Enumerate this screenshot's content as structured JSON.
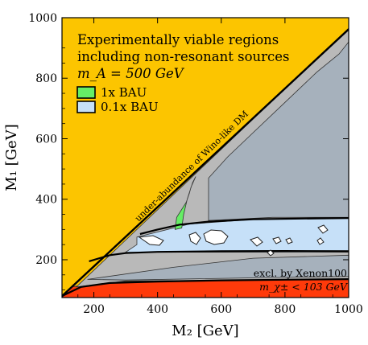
{
  "chart_data": {
    "type": "area",
    "xlabel": "M₂ [GeV]",
    "ylabel": "M₁ [GeV]",
    "xlim": [
      100,
      1000
    ],
    "ylim": [
      75,
      1000
    ],
    "xticks": [
      200,
      400,
      600,
      800,
      1000
    ],
    "yticks": [
      200,
      400,
      600,
      800,
      1000
    ],
    "title_lines": [
      "Experimentally viable regions",
      "including non-resonant sources",
      "m_A = 500 GeV"
    ],
    "legend": {
      "placement": "top-left",
      "entries": [
        {
          "label": "1x BAU",
          "color": "#66ee66"
        },
        {
          "label": "0.1x BAU",
          "color": "#c6e0f8"
        }
      ]
    },
    "annotations": {
      "diagonal": "under-abundance of Wino-like DM",
      "xenon": "excl. by Xenon100",
      "chargino": "m_χ± < 103 GeV"
    },
    "colors": {
      "under_abundance": "#fcc500",
      "excluded_chargino": "#ff3a0a",
      "gray_light": "#b9b9b9",
      "gray_dark": "#a6b1bc",
      "bau_1x": "#66ee66",
      "bau_01x": "#c6e0f8"
    },
    "regions": [
      {
        "name": "under-abundance of Wino-like DM",
        "color": "#fcc500",
        "points": [
          [
            100,
            75
          ],
          [
            100,
            1000
          ],
          [
            1000,
            1000
          ],
          [
            1000,
            965
          ],
          [
            145,
            110
          ]
        ]
      },
      {
        "name": "m_χ± < 103 GeV",
        "color": "#ff3a0a",
        "points": [
          [
            100,
            75
          ],
          [
            1000,
            75
          ],
          [
            1000,
            135
          ],
          [
            600,
            133
          ],
          [
            300,
            128
          ],
          [
            180,
            118
          ],
          [
            130,
            110
          ]
        ]
      },
      {
        "name": "gray-light",
        "color": "#b9b9b9",
        "points": [
          [
            145,
            110
          ],
          [
            1000,
            965
          ],
          [
            1000,
            135
          ],
          [
            300,
            130
          ]
        ]
      },
      {
        "name": "gray-dark",
        "color": "#a6b1bc",
        "points": [
          [
            560,
            470
          ],
          [
            620,
            540
          ],
          [
            700,
            620
          ],
          [
            800,
            720
          ],
          [
            900,
            820
          ],
          [
            970,
            880
          ],
          [
            1000,
            920
          ],
          [
            1000,
            340
          ],
          [
            760,
            340
          ],
          [
            640,
            334
          ],
          [
            560,
            330
          ]
        ]
      },
      {
        "name": "gray-dark",
        "color": "#a6b1bc",
        "points": [
          [
            180,
            135
          ],
          [
            450,
            175
          ],
          [
            700,
            205
          ],
          [
            1000,
            215
          ],
          [
            1000,
            145
          ],
          [
            700,
            140
          ],
          [
            300,
            133
          ]
        ]
      },
      {
        "name": "0.1x BAU",
        "color": "#c6e0f8",
        "points": [
          [
            335,
            275
          ],
          [
            500,
            318
          ],
          [
            700,
            333
          ],
          [
            1000,
            338
          ],
          [
            1000,
            225
          ],
          [
            560,
            225
          ],
          [
            300,
            225
          ],
          [
            335,
            250
          ]
        ]
      },
      {
        "name": "1x BAU",
        "color": "#66ee66",
        "points": [
          [
            455,
            300
          ],
          [
            460,
            340
          ],
          [
            472,
            360
          ],
          [
            490,
            390
          ],
          [
            500,
            420
          ],
          [
            505,
            440
          ],
          [
            520,
            475
          ],
          [
            510,
            455
          ],
          [
            493,
            400
          ],
          [
            482,
            350
          ],
          [
            476,
            305
          ]
        ]
      }
    ],
    "boundaries": [
      {
        "name": "viability-boundary",
        "points": [
          [
            345,
            285
          ],
          [
            400,
            300
          ],
          [
            470,
            316
          ],
          [
            560,
            326
          ],
          [
            700,
            334
          ],
          [
            850,
            336
          ],
          [
            1000,
            338
          ]
        ]
      },
      {
        "name": "viability-boundary",
        "points": [
          [
            185,
            195
          ],
          [
            250,
            215
          ],
          [
            300,
            222
          ],
          [
            400,
            226
          ],
          [
            600,
            228
          ],
          [
            800,
            229
          ],
          [
            1000,
            228
          ]
        ]
      },
      {
        "name": "viability-boundary",
        "points": [
          [
            100,
            80
          ],
          [
            160,
            110
          ],
          [
            250,
            123
          ],
          [
            400,
            128
          ],
          [
            600,
            132
          ],
          [
            800,
            134
          ],
          [
            1000,
            136
          ]
        ]
      },
      {
        "name": "diagonal-boundary",
        "points": [
          [
            100,
            80
          ],
          [
            1000,
            962
          ]
        ]
      }
    ]
  }
}
